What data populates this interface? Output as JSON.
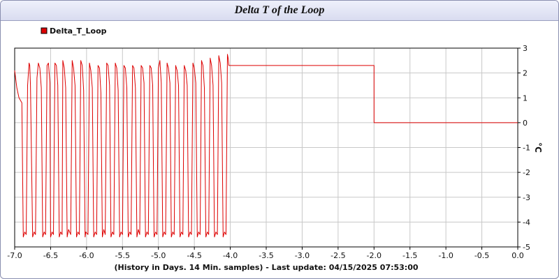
{
  "title": "Delta T of the Loop",
  "chart_data": {
    "type": "line",
    "title": "Delta T of the Loop",
    "xlabel": "(History in Days. 14 Min. samples) - Last update: 04/15/2025 07:53:00",
    "ylabel": "°C",
    "xlim": [
      -7.0,
      0.0
    ],
    "ylim": [
      -5,
      3
    ],
    "x_ticks": [
      -7.0,
      -6.5,
      -6.0,
      -5.5,
      -5.0,
      -4.5,
      -4.0,
      -3.5,
      -3.0,
      -2.5,
      -2.0,
      -1.5,
      -1.0,
      -0.5,
      0.0
    ],
    "x_tick_labels": [
      "-7.0",
      "-6.5",
      "-6.0",
      "-5.5",
      "-5.0",
      "-4.5",
      "-4.0",
      "-3.5",
      "-3.0",
      "-2.5",
      "-2.0",
      "-1.5",
      "-1.0",
      "-0.5",
      "0.0"
    ],
    "y_ticks": [
      3,
      2,
      1,
      0,
      -1,
      -2,
      -3,
      -4,
      -5
    ],
    "y_tick_labels": [
      "3",
      "2",
      "1",
      "0",
      "-1",
      "-2",
      "-3",
      "-4",
      "-5"
    ],
    "grid": true,
    "legend_position": "top-left",
    "series": [
      {
        "name": "Delta_T_Loop",
        "color": "#dd0000",
        "x": [
          -7.0,
          -6.97,
          -6.94,
          -6.9,
          -6.88,
          -6.86,
          -6.84,
          -6.82,
          -6.8,
          -6.79,
          -6.78,
          -6.75,
          -6.73,
          -6.71,
          -6.69,
          -6.67,
          -6.65,
          -6.63,
          -6.61,
          -6.59,
          -6.57,
          -6.55,
          -6.53,
          -6.51,
          -6.5,
          -6.48,
          -6.46,
          -6.44,
          -6.42,
          -6.4,
          -6.38,
          -6.36,
          -6.34,
          -6.33,
          -6.31,
          -6.29,
          -6.27,
          -6.25,
          -6.22,
          -6.2,
          -6.18,
          -6.16,
          -6.14,
          -6.12,
          -6.1,
          -6.08,
          -6.06,
          -6.04,
          -6.02,
          -6.01,
          -5.98,
          -5.96,
          -5.94,
          -5.92,
          -5.9,
          -5.88,
          -5.86,
          -5.84,
          -5.82,
          -5.8,
          -5.78,
          -5.76,
          -5.74,
          -5.72,
          -5.7,
          -5.68,
          -5.66,
          -5.64,
          -5.62,
          -5.6,
          -5.58,
          -5.56,
          -5.54,
          -5.52,
          -5.5,
          -5.48,
          -5.46,
          -5.44,
          -5.42,
          -5.4,
          -5.38,
          -5.36,
          -5.34,
          -5.32,
          -5.3,
          -5.28,
          -5.26,
          -5.24,
          -5.22,
          -5.2,
          -5.18,
          -5.16,
          -5.14,
          -5.12,
          -5.1,
          -5.08,
          -5.06,
          -5.04,
          -5.02,
          -5.0,
          -4.98,
          -4.96,
          -4.94,
          -4.92,
          -4.9,
          -4.88,
          -4.86,
          -4.84,
          -4.82,
          -4.8,
          -4.78,
          -4.76,
          -4.74,
          -4.72,
          -4.7,
          -4.68,
          -4.66,
          -4.64,
          -4.62,
          -4.6,
          -4.58,
          -4.56,
          -4.54,
          -4.52,
          -4.5,
          -4.48,
          -4.46,
          -4.44,
          -4.42,
          -4.4,
          -4.38,
          -4.36,
          -4.34,
          -4.32,
          -4.3,
          -4.28,
          -4.26,
          -4.24,
          -4.22,
          -4.2,
          -4.18,
          -4.16,
          -4.14,
          -4.12,
          -4.1,
          -4.08,
          -4.06,
          -4.04,
          -4.03,
          -4.02,
          -3.99,
          -2.0,
          -2.0,
          0.0
        ],
        "values": [
          2.1,
          1.4,
          1.0,
          0.8,
          -4.6,
          -4.4,
          -4.5,
          1.5,
          2.4,
          2.3,
          1.5,
          -4.6,
          -4.4,
          -4.5,
          1.8,
          2.4,
          2.2,
          1.4,
          -4.6,
          -4.4,
          -4.5,
          2.3,
          2.4,
          1.6,
          -4.6,
          -4.4,
          -4.5,
          2.4,
          2.3,
          1.5,
          -4.6,
          -4.4,
          -4.5,
          2.5,
          2.2,
          1.4,
          -4.6,
          -4.3,
          -4.5,
          2.5,
          2.2,
          1.5,
          -4.6,
          -4.4,
          -4.5,
          2.5,
          2.3,
          1.3,
          -4.6,
          -4.4,
          -4.5,
          2.4,
          2.1,
          1.4,
          -4.6,
          -4.4,
          -4.5,
          2.3,
          2.2,
          1.2,
          -4.6,
          -4.3,
          -4.5,
          2.4,
          2.3,
          1.5,
          -4.6,
          -4.4,
          -4.5,
          2.4,
          2.2,
          1.3,
          -4.6,
          -4.4,
          -4.5,
          2.3,
          2.2,
          1.4,
          -4.6,
          -4.4,
          -4.5,
          2.3,
          2.2,
          1.4,
          -4.6,
          -4.3,
          -4.5,
          2.3,
          2.2,
          1.6,
          -4.6,
          -4.4,
          -4.5,
          2.3,
          2.2,
          1.5,
          -4.6,
          -4.4,
          -4.5,
          2.2,
          2.5,
          1.6,
          -4.6,
          -4.4,
          -4.5,
          2.4,
          2.2,
          1.6,
          -4.6,
          -4.4,
          -4.5,
          2.3,
          2.1,
          1.5,
          -4.6,
          -4.4,
          -4.5,
          2.3,
          2.1,
          1.5,
          -4.6,
          -4.4,
          -4.5,
          2.4,
          2.2,
          1.6,
          -4.6,
          -4.4,
          -4.5,
          2.5,
          2.3,
          1.4,
          -4.6,
          -4.4,
          -4.5,
          2.6,
          2.3,
          1.5,
          -4.6,
          -4.4,
          -4.5,
          2.7,
          2.4,
          1.6,
          -4.6,
          -4.4,
          -4.5,
          2.75,
          2.6,
          2.3,
          2.3,
          2.3,
          0.0,
          0.0
        ]
      }
    ]
  }
}
